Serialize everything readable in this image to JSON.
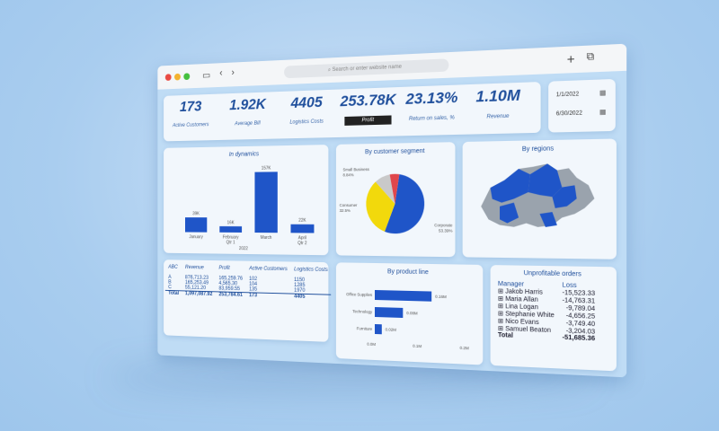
{
  "browser": {
    "url_placeholder": "Search or enter website name"
  },
  "kpis": [
    {
      "value": "173",
      "label": "Active Customers"
    },
    {
      "value": "1.92K",
      "label": "Average Bill"
    },
    {
      "value": "4405",
      "label": "Logistics Costs"
    },
    {
      "value": "253.78K",
      "label": "Profit"
    },
    {
      "value": "23.13%",
      "label": "Return on sales, %"
    },
    {
      "value": "1.10M",
      "label": "Revenue"
    }
  ],
  "dates": {
    "start": "1/1/2022",
    "end": "6/30/2022"
  },
  "dynamics": {
    "title": "In dynamics",
    "bars": [
      {
        "label": "January",
        "value": "39K",
        "v": 39
      },
      {
        "label": "February",
        "value": "16K",
        "v": 16
      },
      {
        "label": "March",
        "value": "157K",
        "v": 157
      },
      {
        "label": "April",
        "value": "22K",
        "v": 22
      }
    ],
    "qtr1": "Qtr 1",
    "qtr2": "Qtr 2",
    "year": "2022"
  },
  "segment": {
    "title": "By customer segment",
    "slices": [
      {
        "name": "Corporate",
        "pct": "53.39%",
        "v": 53.39,
        "color": "#1f55c8"
      },
      {
        "name": "Consumer",
        "pct": "32.5%",
        "v": 32.5,
        "color": "#f2d90c"
      },
      {
        "name": "Small Business",
        "pct": "8.84%",
        "v": 8.84,
        "color": "#c9c9c9"
      },
      {
        "name": "",
        "pct": "",
        "v": 5.27,
        "color": "#e0474c"
      }
    ]
  },
  "regions": {
    "title": "By regions"
  },
  "table": {
    "headers": [
      "ABC",
      "Revenue",
      "Profit",
      "Active Customers",
      "Logistics Costs"
    ],
    "rows": [
      [
        "A",
        "876,713.23",
        "165,259.76",
        "102",
        "1150"
      ],
      [
        "B",
        "165,253.49",
        "4,565.30",
        "104",
        "1285"
      ],
      [
        "C",
        "55,121.20",
        "83,959.55",
        "135",
        "1970"
      ]
    ],
    "total": [
      "Total",
      "1,097,087.92",
      "253,784.61",
      "173",
      "4405"
    ]
  },
  "product": {
    "title": "By product line",
    "bars": [
      {
        "label": "Office Supplies",
        "value": "0.16M",
        "v": 0.16
      },
      {
        "label": "Technology",
        "value": "0.08M",
        "v": 0.08
      },
      {
        "label": "Furniture",
        "value": "0.02M",
        "v": 0.02
      }
    ],
    "ticks": [
      "0.0M",
      "0.1M",
      "0.2M"
    ]
  },
  "unprofitable": {
    "title": "Unprofitable orders",
    "headers": [
      "Manager",
      "Loss"
    ],
    "rows": [
      [
        "Jakob Harris",
        "-15,523.33"
      ],
      [
        "Maria Allan",
        "-14,763.31"
      ],
      [
        "Lina Logan",
        "-9,789.04"
      ],
      [
        "Stephanie White",
        "-4,656.25"
      ],
      [
        "Nico Evans",
        "-3,749.40"
      ],
      [
        "Samuel Beaton",
        "-3,204.03"
      ]
    ],
    "total": [
      "Total",
      "-51,685.36"
    ]
  },
  "colors": {
    "accent": "#1f55c8",
    "text": "#1f4f9c"
  }
}
